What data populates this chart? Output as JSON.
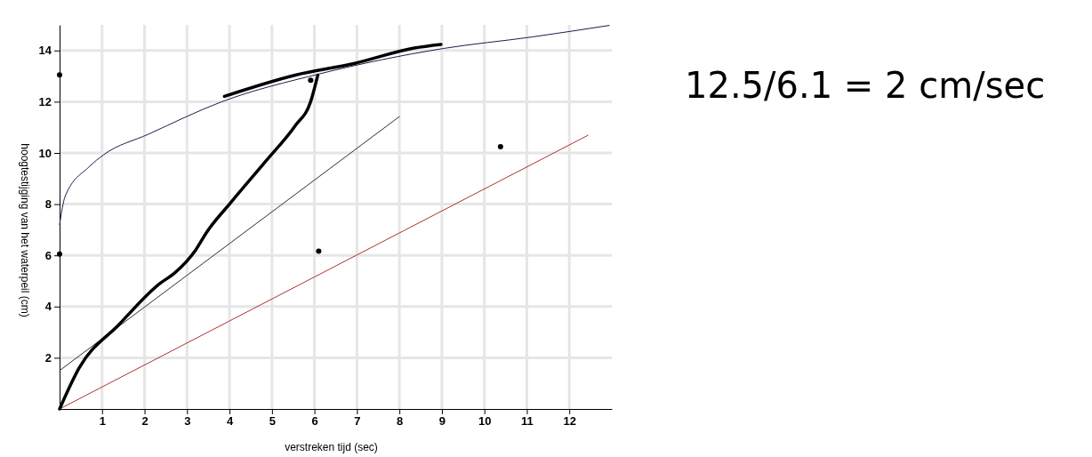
{
  "chart_data": {
    "type": "line",
    "xlabel": "verstreken tijd (sec)",
    "ylabel": "hoogtestijging van het waterpeil (cm)",
    "xlim": [
      0,
      13
    ],
    "ylim": [
      0,
      15
    ],
    "xticks": [
      1,
      2,
      3,
      4,
      5,
      6,
      7,
      8,
      9,
      10,
      11,
      12
    ],
    "yticks": [
      2,
      4,
      6,
      8,
      10,
      12,
      14
    ],
    "grid": true,
    "annotations": [
      "12.5/6.1 = 2 cm/sec"
    ],
    "series": [
      {
        "color": "#1c1c4a",
        "x": [
          0,
          0.13,
          0.69,
          1.04,
          2.09,
          3.82,
          6.1,
          9.04,
          11.13,
          12.94
        ],
        "values": [
          7.2,
          8.3,
          9.45,
          9.93,
          10.73,
          12.0,
          13.08,
          14.08,
          14.53,
          14.98
        ]
      },
      {
        "color": "#3a2a2a",
        "x": [
          0,
          8.0
        ],
        "values": [
          1.5,
          11.42
        ]
      },
      {
        "color": "#b03030",
        "x": [
          0,
          12.44
        ],
        "values": [
          0,
          10.69
        ]
      },
      {
        "color": "#000000",
        "x": [
          0,
          0.46,
          1.4,
          2.36,
          2.7,
          3.2,
          3.47,
          4.03,
          4.86,
          5.55,
          5.91,
          6.08
        ],
        "values": [
          0,
          1.6,
          3.3,
          4.9,
          5.3,
          6.2,
          6.92,
          8.06,
          9.69,
          11.07,
          12.0,
          13.04
        ]
      },
      {
        "color": "#000000",
        "x": [
          3.88,
          5.55,
          6.95,
          8.35,
          8.98
        ],
        "values": [
          12.21,
          13.04,
          13.5,
          14.1,
          14.24
        ]
      },
      {
        "type": "scatter",
        "color": "#000000",
        "x": [
          0,
          0,
          6.1,
          10.38,
          5.91
        ],
        "values": [
          13.05,
          6.05,
          6.16,
          10.24,
          12.84
        ]
      }
    ]
  }
}
